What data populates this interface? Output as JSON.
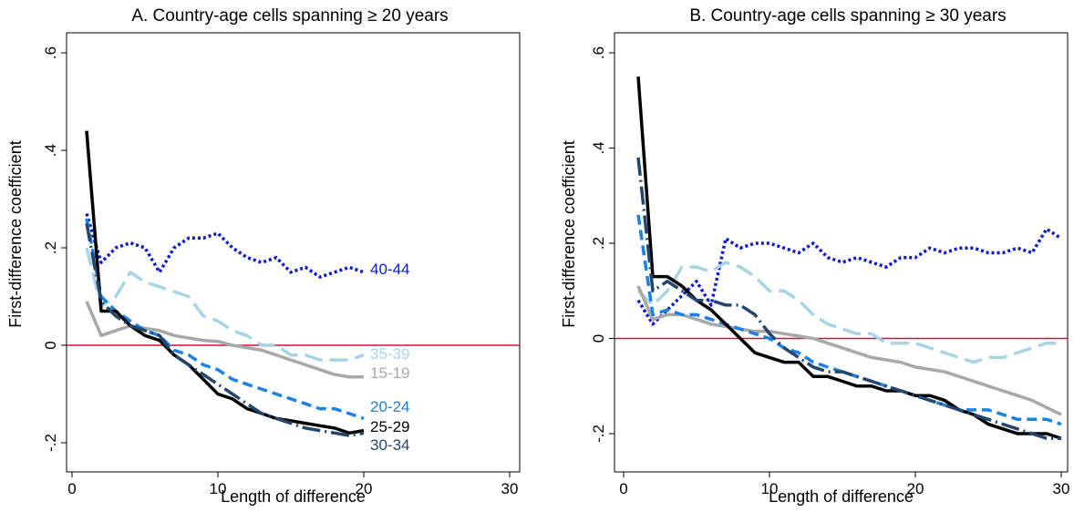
{
  "chart_data": [
    {
      "type": "line",
      "title": "A. Country-age cells spanning ≥ 20 years",
      "xlabel": "Length of difference",
      "ylabel": "First-difference coefficient",
      "xlim": [
        0,
        30
      ],
      "ylim": [
        -0.2,
        0.6
      ],
      "xticks": [
        0,
        10,
        20,
        30
      ],
      "xtick_labels": [
        "0",
        "10",
        "20",
        "30"
      ],
      "yticks": [
        -0.2,
        0,
        0.2,
        0.4,
        0.6
      ],
      "ytick_labels": [
        "-.2",
        "0",
        ".2",
        ".4",
        ".6"
      ],
      "reference_line": {
        "y": 0,
        "color": "#d0103a"
      },
      "grid": false,
      "series": [
        {
          "name": "40-44",
          "color": "#0b18d6",
          "style": "dotted",
          "x": [
            1,
            2,
            3,
            4,
            5,
            6,
            7,
            8,
            9,
            10,
            11,
            12,
            13,
            14,
            15,
            16,
            17,
            18,
            19,
            20
          ],
          "y": [
            0.27,
            0.17,
            0.2,
            0.21,
            0.2,
            0.15,
            0.2,
            0.22,
            0.22,
            0.23,
            0.2,
            0.18,
            0.17,
            0.18,
            0.15,
            0.16,
            0.14,
            0.15,
            0.16,
            0.15
          ]
        },
        {
          "name": "35-39",
          "color": "#a8d4e6",
          "style": "longdash",
          "x": [
            1,
            2,
            3,
            4,
            5,
            6,
            7,
            8,
            9,
            10,
            11,
            12,
            13,
            14,
            15,
            16,
            17,
            18,
            19,
            20
          ],
          "y": [
            0.2,
            0.08,
            0.1,
            0.15,
            0.13,
            0.12,
            0.11,
            0.1,
            0.06,
            0.05,
            0.03,
            0.02,
            0.0,
            0.0,
            -0.02,
            -0.02,
            -0.03,
            -0.03,
            -0.03,
            -0.02
          ]
        },
        {
          "name": "15-19",
          "color": "#a8a8a8",
          "style": "solid",
          "x": [
            1,
            2,
            3,
            4,
            5,
            6,
            7,
            8,
            9,
            10,
            11,
            12,
            13,
            14,
            15,
            16,
            17,
            18,
            19,
            20
          ],
          "y": [
            0.09,
            0.02,
            0.03,
            0.04,
            0.035,
            0.03,
            0.02,
            0.015,
            0.01,
            0.008,
            0.0,
            -0.005,
            -0.01,
            -0.02,
            -0.03,
            -0.04,
            -0.05,
            -0.06,
            -0.065,
            -0.065
          ]
        },
        {
          "name": "20-24",
          "color": "#1a82e6",
          "style": "dash",
          "x": [
            1,
            2,
            3,
            4,
            5,
            6,
            7,
            8,
            9,
            10,
            11,
            12,
            13,
            14,
            15,
            16,
            17,
            18,
            19,
            20
          ],
          "y": [
            0.26,
            0.1,
            0.07,
            0.05,
            0.03,
            0.02,
            -0.01,
            -0.02,
            -0.04,
            -0.05,
            -0.07,
            -0.08,
            -0.09,
            -0.1,
            -0.11,
            -0.12,
            -0.13,
            -0.13,
            -0.14,
            -0.15
          ]
        },
        {
          "name": "25-29",
          "color": "#000000",
          "style": "solid",
          "x": [
            1,
            2,
            3,
            4,
            5,
            6,
            7,
            8,
            9,
            10,
            11,
            12,
            13,
            14,
            15,
            16,
            17,
            18,
            19,
            20
          ],
          "y": [
            0.44,
            0.07,
            0.07,
            0.04,
            0.02,
            0.01,
            -0.02,
            -0.04,
            -0.07,
            -0.1,
            -0.11,
            -0.13,
            -0.14,
            -0.15,
            -0.155,
            -0.16,
            -0.165,
            -0.17,
            -0.18,
            -0.175
          ]
        },
        {
          "name": "30-34",
          "color": "#24466e",
          "style": "longdashdot",
          "x": [
            1,
            2,
            3,
            4,
            5,
            6,
            7,
            8,
            9,
            10,
            11,
            12,
            13,
            14,
            15,
            16,
            17,
            18,
            19,
            20
          ],
          "y": [
            0.25,
            0.09,
            0.06,
            0.04,
            0.03,
            0.02,
            -0.02,
            -0.04,
            -0.06,
            -0.08,
            -0.1,
            -0.12,
            -0.14,
            -0.15,
            -0.16,
            -0.17,
            -0.175,
            -0.18,
            -0.185,
            -0.18
          ]
        }
      ]
    },
    {
      "type": "line",
      "title": "B. Country-age cells spanning ≥ 30 years",
      "xlabel": "Length of difference",
      "ylabel": "First-difference coefficient",
      "xlim": [
        0,
        30
      ],
      "ylim": [
        -0.2,
        0.6
      ],
      "xticks": [
        0,
        10,
        20,
        30
      ],
      "xtick_labels": [
        "0",
        "10",
        "20",
        "30"
      ],
      "yticks": [
        -0.2,
        0,
        0.2,
        0.4,
        0.6
      ],
      "ytick_labels": [
        "-.2",
        "0",
        ".2",
        ".4",
        ".6"
      ],
      "reference_line": {
        "y": 0,
        "color": "#d0103a"
      },
      "grid": false,
      "series": [
        {
          "name": "40-44",
          "color": "#0b18d6",
          "style": "dotted",
          "x": [
            1,
            2,
            3,
            4,
            5,
            6,
            7,
            8,
            9,
            10,
            11,
            12,
            13,
            14,
            15,
            16,
            17,
            18,
            19,
            20,
            21,
            22,
            23,
            24,
            25,
            26,
            27,
            28,
            29,
            30
          ],
          "y": [
            0.08,
            0.03,
            0.06,
            0.09,
            0.12,
            0.07,
            0.21,
            0.19,
            0.2,
            0.2,
            0.19,
            0.18,
            0.2,
            0.17,
            0.16,
            0.17,
            0.16,
            0.15,
            0.17,
            0.17,
            0.19,
            0.18,
            0.19,
            0.19,
            0.18,
            0.18,
            0.19,
            0.18,
            0.23,
            0.21
          ]
        },
        {
          "name": "35-39",
          "color": "#a8d4e6",
          "style": "longdash",
          "x": [
            1,
            2,
            3,
            4,
            5,
            6,
            7,
            8,
            9,
            10,
            11,
            12,
            13,
            14,
            15,
            16,
            17,
            18,
            19,
            20,
            21,
            22,
            23,
            24,
            25,
            26,
            27,
            28,
            29,
            30
          ],
          "y": [
            0.1,
            0.07,
            0.1,
            0.15,
            0.15,
            0.14,
            0.16,
            0.15,
            0.13,
            0.1,
            0.1,
            0.08,
            0.05,
            0.03,
            0.02,
            0.01,
            0.01,
            -0.01,
            -0.01,
            -0.01,
            -0.02,
            -0.03,
            -0.04,
            -0.05,
            -0.04,
            -0.04,
            -0.03,
            -0.02,
            -0.01,
            -0.01
          ]
        },
        {
          "name": "15-19",
          "color": "#a8a8a8",
          "style": "solid",
          "x": [
            1,
            2,
            3,
            4,
            5,
            6,
            7,
            8,
            9,
            10,
            11,
            12,
            13,
            14,
            15,
            16,
            17,
            18,
            19,
            20,
            21,
            22,
            23,
            24,
            25,
            26,
            27,
            28,
            29,
            30
          ],
          "y": [
            0.11,
            0.04,
            0.05,
            0.05,
            0.04,
            0.03,
            0.025,
            0.02,
            0.015,
            0.015,
            0.01,
            0.005,
            0.0,
            -0.01,
            -0.02,
            -0.03,
            -0.04,
            -0.045,
            -0.05,
            -0.06,
            -0.065,
            -0.07,
            -0.08,
            -0.09,
            -0.1,
            -0.11,
            -0.12,
            -0.13,
            -0.145,
            -0.16
          ]
        },
        {
          "name": "20-24",
          "color": "#1a82e6",
          "style": "dash",
          "x": [
            1,
            2,
            3,
            4,
            5,
            6,
            7,
            8,
            9,
            10,
            11,
            12,
            13,
            14,
            15,
            16,
            17,
            18,
            19,
            20,
            21,
            22,
            23,
            24,
            25,
            26,
            27,
            28,
            29,
            30
          ],
          "y": [
            0.26,
            0.05,
            0.06,
            0.05,
            0.05,
            0.04,
            0.03,
            0.02,
            0.01,
            0.0,
            -0.02,
            -0.03,
            -0.05,
            -0.06,
            -0.07,
            -0.08,
            -0.09,
            -0.1,
            -0.11,
            -0.12,
            -0.13,
            -0.14,
            -0.15,
            -0.15,
            -0.15,
            -0.16,
            -0.17,
            -0.17,
            -0.17,
            -0.18
          ]
        },
        {
          "name": "25-29",
          "color": "#000000",
          "style": "solid",
          "x": [
            1,
            2,
            3,
            4,
            5,
            6,
            7,
            8,
            9,
            10,
            11,
            12,
            13,
            14,
            15,
            16,
            17,
            18,
            19,
            20,
            21,
            22,
            23,
            24,
            25,
            26,
            27,
            28,
            29,
            30
          ],
          "y": [
            0.55,
            0.13,
            0.13,
            0.11,
            0.08,
            0.06,
            0.03,
            0.0,
            -0.03,
            -0.04,
            -0.05,
            -0.05,
            -0.08,
            -0.08,
            -0.09,
            -0.1,
            -0.1,
            -0.11,
            -0.11,
            -0.12,
            -0.12,
            -0.13,
            -0.15,
            -0.16,
            -0.18,
            -0.19,
            -0.2,
            -0.2,
            -0.2,
            -0.21
          ]
        },
        {
          "name": "30-34",
          "color": "#24466e",
          "style": "longdashdot",
          "x": [
            1,
            2,
            3,
            4,
            5,
            6,
            7,
            8,
            9,
            10,
            11,
            12,
            13,
            14,
            15,
            16,
            17,
            18,
            19,
            20,
            21,
            22,
            23,
            24,
            25,
            26,
            27,
            28,
            29,
            30
          ],
          "y": [
            0.38,
            0.1,
            0.12,
            0.1,
            0.08,
            0.08,
            0.07,
            0.07,
            0.05,
            0.01,
            -0.02,
            -0.04,
            -0.06,
            -0.07,
            -0.07,
            -0.08,
            -0.09,
            -0.1,
            -0.11,
            -0.12,
            -0.13,
            -0.14,
            -0.15,
            -0.16,
            -0.17,
            -0.18,
            -0.19,
            -0.2,
            -0.21,
            -0.21
          ]
        }
      ]
    }
  ]
}
